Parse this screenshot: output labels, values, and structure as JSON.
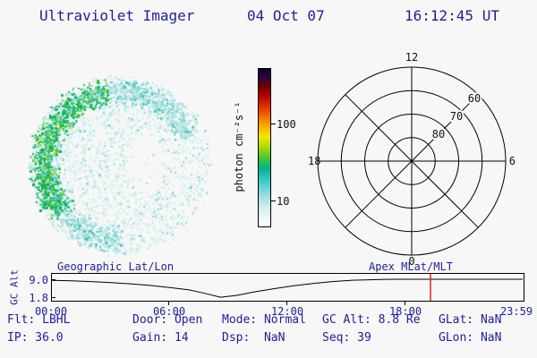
{
  "header": {
    "title": "Ultraviolet Imager",
    "date": "04 Oct 07",
    "time": "16:12:45 UT"
  },
  "uv_image": {
    "palette": {
      "pale": "#d6efef",
      "pale2": "#bfe7e7",
      "cyan": "#8ed8d8",
      "teal": "#4cc8b4",
      "green": "#2abf5f",
      "bright_green": "#0fae4e",
      "yellow_green": "#a6da46"
    }
  },
  "colorbar": {
    "units": "photon cm⁻²s⁻¹",
    "ticks": [
      "100",
      "10"
    ],
    "gradient": [
      "#06061f 0%",
      "#2b0040 5%",
      "#6b0000 11%",
      "#b40000 17%",
      "#e03000 24%",
      "#f07800 31%",
      "#f8b400 37%",
      "#f0e800 43%",
      "#b4dc00 49%",
      "#50c832 56%",
      "#00b48c 63%",
      "#3cc8c8 71%",
      "#96dcdc 80%",
      "#d2eeee 88%",
      "#ffffff 100%"
    ]
  },
  "polar_plot": {
    "mlt_top": "12",
    "mlt_left": "18",
    "mlt_right": "6",
    "mlt_bottom": "0",
    "mlat_rings": [
      "60",
      "70",
      "80"
    ]
  },
  "alt_plot": {
    "left_title": "Geographic Lat/Lon",
    "right_title": "Apex MLat/MLT",
    "ylabel": "GC Alt",
    "ytick_top": "9.0",
    "ytick_bottom": "1.8"
  },
  "status": {
    "rows": [
      [
        "Flt: LBHL",
        "Door: Open",
        "Mode: Normal",
        "GC Alt: 8.8 Re",
        "GLat: NaN"
      ],
      [
        "IP: 36.0",
        "Gain: 14",
        "Dsp:  NaN",
        "Seq: 39",
        "GLon: NaN"
      ]
    ]
  },
  "chart_data": {
    "type": "line",
    "title": "Spacecraft geocentric altitude over 24 h UT",
    "ylabel": "GC Alt",
    "ylim": [
      1.8,
      9.0
    ],
    "yticks": [
      9.0,
      1.8
    ],
    "xticks": [
      "00:00",
      "06:00",
      "12:00",
      "18:00",
      "23:59"
    ],
    "x_hours": [
      0,
      1,
      2,
      3,
      4,
      5,
      6,
      7,
      7.8,
      8.6,
      9.4,
      10.3,
      11.3,
      12.3,
      13.3,
      14.3,
      15.3,
      16.2,
      17,
      18,
      19,
      20,
      21,
      22,
      23,
      24
    ],
    "values": [
      8.55,
      8.35,
      8.05,
      7.65,
      7.15,
      6.5,
      5.7,
      4.7,
      3.3,
      1.75,
      2.5,
      3.9,
      5.2,
      6.35,
      7.3,
      8.05,
      8.6,
      8.8,
      8.95,
      9.0,
      9.0,
      9.0,
      9.0,
      9.0,
      9.0,
      9.0
    ],
    "marker": {
      "hour": 19.3,
      "color": "#e02020"
    }
  }
}
